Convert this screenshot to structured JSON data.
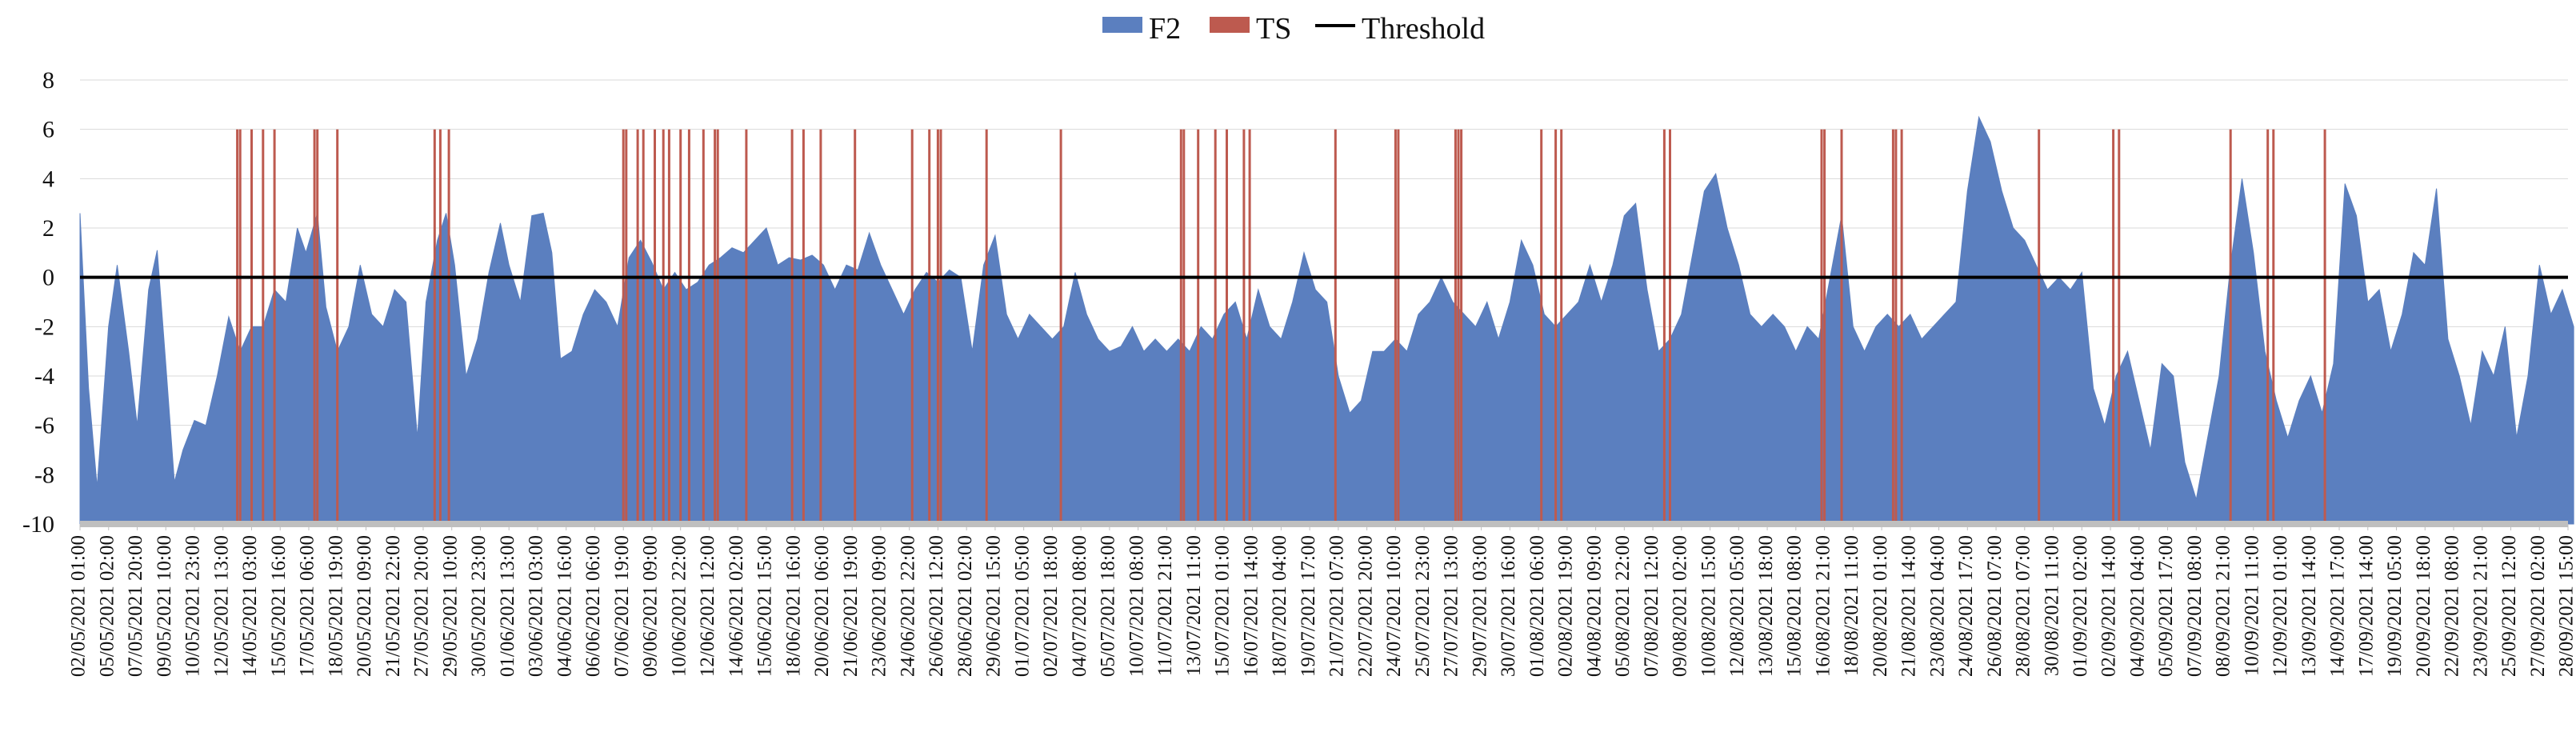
{
  "chart_data": {
    "type": "area",
    "title": "",
    "xlabel": "",
    "ylabel": "",
    "ylim": [
      -10,
      8
    ],
    "yticks": [
      -10,
      -8,
      -6,
      -4,
      -2,
      0,
      2,
      4,
      6,
      8
    ],
    "grid": "horizontal",
    "legend_position": "top-center",
    "legend": [
      {
        "name": "F2",
        "kind": "area",
        "color": "#5b7fbf"
      },
      {
        "name": "TS",
        "kind": "bar",
        "color": "#bd5a4f"
      },
      {
        "name": "Threshold",
        "kind": "line",
        "color": "#000000"
      }
    ],
    "x_tick_labels": [
      "02/05/2021 01:00",
      "05/05/2021 02:00",
      "07/05/2021 20:00",
      "09/05/2021 10:00",
      "10/05/2021 23:00",
      "12/05/2021 13:00",
      "14/05/2021 03:00",
      "15/05/2021 16:00",
      "17/05/2021 06:00",
      "18/05/2021 19:00",
      "20/05/2021 09:00",
      "21/05/2021 22:00",
      "27/05/2021 20:00",
      "29/05/2021 10:00",
      "30/05/2021 23:00",
      "01/06/2021 13:00",
      "03/06/2021 03:00",
      "04/06/2021 16:00",
      "06/06/2021 06:00",
      "07/06/2021 19:00",
      "09/06/2021 09:00",
      "10/06/2021 22:00",
      "12/06/2021 12:00",
      "14/06/2021 02:00",
      "15/06/2021 15:00",
      "18/06/2021 16:00",
      "20/06/2021 06:00",
      "21/06/2021 19:00",
      "23/06/2021 09:00",
      "24/06/2021 22:00",
      "26/06/2021 12:00",
      "28/06/2021 02:00",
      "29/06/2021 15:00",
      "01/07/2021 05:00",
      "02/07/2021 18:00",
      "04/07/2021 08:00",
      "05/07/2021 18:00",
      "10/07/2021 08:00",
      "11/07/2021 21:00",
      "13/07/2021 11:00",
      "15/07/2021 01:00",
      "16/07/2021 14:00",
      "18/07/2021 04:00",
      "19/07/2021 17:00",
      "21/07/2021 07:00",
      "22/07/2021 20:00",
      "24/07/2021 10:00",
      "25/07/2021 23:00",
      "27/07/2021 13:00",
      "29/07/2021 03:00",
      "30/07/2021 16:00",
      "01/08/2021 06:00",
      "02/08/2021 19:00",
      "04/08/2021 09:00",
      "05/08/2021 22:00",
      "07/08/2021 12:00",
      "09/08/2021 02:00",
      "10/08/2021 15:00",
      "12/08/2021 05:00",
      "13/08/2021 18:00",
      "15/08/2021 08:00",
      "16/08/2021 21:00",
      "18/08/2021 11:00",
      "20/08/2021 01:00",
      "21/08/2021 14:00",
      "23/08/2021 04:00",
      "24/08/2021 17:00",
      "26/08/2021 07:00",
      "28/08/2021 07:00",
      "30/08/2021 11:00",
      "01/09/2021 02:00",
      "02/09/2021 14:00",
      "04/09/2021 04:00",
      "05/09/2021 17:00",
      "07/09/2021 08:00",
      "08/09/2021 21:00",
      "10/09/2021 11:00",
      "12/09/2021 01:00",
      "13/09/2021 14:00",
      "14/09/2021 17:00",
      "17/09/2021 14:00",
      "19/09/2021 05:00",
      "20/09/2021 18:00",
      "22/09/2021 08:00",
      "23/09/2021 21:00",
      "25/09/2021 12:00",
      "27/09/2021 02:00",
      "28/09/2021 15:00"
    ],
    "threshold": 0,
    "series": [
      {
        "name": "F2",
        "kind": "area",
        "points": [
          [
            0,
            2.6
          ],
          [
            0.3,
            -4.5
          ],
          [
            0.6,
            -8.5
          ],
          [
            1.0,
            -2.0
          ],
          [
            1.3,
            0.5
          ],
          [
            1.7,
            -3.0
          ],
          [
            2.0,
            -6.0
          ],
          [
            2.4,
            -0.5
          ],
          [
            2.7,
            1.1
          ],
          [
            3.0,
            -3.5
          ],
          [
            3.3,
            -8.3
          ],
          [
            3.6,
            -7.0
          ],
          [
            4.0,
            -5.8
          ],
          [
            4.4,
            -6.0
          ],
          [
            4.8,
            -4.0
          ],
          [
            5.2,
            -1.6
          ],
          [
            5.6,
            -3.0
          ],
          [
            6.0,
            -2.0
          ],
          [
            6.4,
            -2.0
          ],
          [
            6.8,
            -0.5
          ],
          [
            7.2,
            -1.0
          ],
          [
            7.6,
            2.0
          ],
          [
            7.9,
            1.0
          ],
          [
            8.3,
            2.6
          ],
          [
            8.6,
            -1.2
          ],
          [
            9.0,
            -3.0
          ],
          [
            9.4,
            -2.0
          ],
          [
            9.8,
            0.5
          ],
          [
            10.2,
            -1.5
          ],
          [
            10.6,
            -2.0
          ],
          [
            11.0,
            -0.5
          ],
          [
            11.4,
            -1.0
          ],
          [
            11.8,
            -6.5
          ],
          [
            12.1,
            -1.0
          ],
          [
            12.5,
            1.5
          ],
          [
            12.8,
            2.6
          ],
          [
            13.1,
            0.5
          ],
          [
            13.5,
            -4.0
          ],
          [
            13.9,
            -2.5
          ],
          [
            14.3,
            0.2
          ],
          [
            14.7,
            2.2
          ],
          [
            15.0,
            0.5
          ],
          [
            15.4,
            -1.0
          ],
          [
            15.8,
            2.5
          ],
          [
            16.2,
            2.6
          ],
          [
            16.5,
            1.0
          ],
          [
            16.8,
            -3.3
          ],
          [
            17.2,
            -3.0
          ],
          [
            17.6,
            -1.5
          ],
          [
            18.0,
            -0.5
          ],
          [
            18.4,
            -1.0
          ],
          [
            18.8,
            -2.0
          ],
          [
            19.2,
            0.8
          ],
          [
            19.6,
            1.5
          ],
          [
            20.0,
            0.6
          ],
          [
            20.4,
            -0.5
          ],
          [
            20.8,
            0.2
          ],
          [
            21.2,
            -0.5
          ],
          [
            21.6,
            -0.2
          ],
          [
            22.0,
            0.5
          ],
          [
            22.4,
            0.8
          ],
          [
            22.8,
            1.2
          ],
          [
            23.2,
            1.0
          ],
          [
            23.6,
            1.5
          ],
          [
            24.0,
            2.0
          ],
          [
            24.4,
            0.5
          ],
          [
            24.8,
            0.8
          ],
          [
            25.2,
            0.7
          ],
          [
            25.6,
            0.9
          ],
          [
            26.0,
            0.5
          ],
          [
            26.4,
            -0.5
          ],
          [
            26.8,
            0.5
          ],
          [
            27.2,
            0.3
          ],
          [
            27.6,
            1.8
          ],
          [
            28.0,
            0.5
          ],
          [
            28.4,
            -0.5
          ],
          [
            28.8,
            -1.5
          ],
          [
            29.2,
            -0.5
          ],
          [
            29.6,
            0.2
          ],
          [
            30.0,
            -0.2
          ],
          [
            30.4,
            0.3
          ],
          [
            30.8,
            0.0
          ],
          [
            31.2,
            -3.0
          ],
          [
            31.6,
            0.5
          ],
          [
            32.0,
            1.7
          ],
          [
            32.4,
            -1.5
          ],
          [
            32.8,
            -2.5
          ],
          [
            33.2,
            -1.5
          ],
          [
            33.6,
            -2.0
          ],
          [
            34.0,
            -2.5
          ],
          [
            34.4,
            -2.0
          ],
          [
            34.8,
            0.2
          ],
          [
            35.2,
            -1.5
          ],
          [
            35.6,
            -2.5
          ],
          [
            36.0,
            -3.0
          ],
          [
            36.4,
            -2.8
          ],
          [
            36.8,
            -2.0
          ],
          [
            37.2,
            -3.0
          ],
          [
            37.6,
            -2.5
          ],
          [
            38.0,
            -3.0
          ],
          [
            38.4,
            -2.5
          ],
          [
            38.8,
            -3.0
          ],
          [
            39.2,
            -2.0
          ],
          [
            39.6,
            -2.5
          ],
          [
            40.0,
            -1.5
          ],
          [
            40.4,
            -1.0
          ],
          [
            40.8,
            -2.5
          ],
          [
            41.2,
            -0.5
          ],
          [
            41.6,
            -2.0
          ],
          [
            42.0,
            -2.5
          ],
          [
            42.4,
            -1.0
          ],
          [
            42.8,
            1.0
          ],
          [
            43.2,
            -0.5
          ],
          [
            43.6,
            -1.0
          ],
          [
            44.0,
            -4.0
          ],
          [
            44.4,
            -5.5
          ],
          [
            44.8,
            -5.0
          ],
          [
            45.2,
            -3.0
          ],
          [
            45.6,
            -3.0
          ],
          [
            46.0,
            -2.5
          ],
          [
            46.4,
            -3.0
          ],
          [
            46.8,
            -1.5
          ],
          [
            47.2,
            -1.0
          ],
          [
            47.6,
            0.0
          ],
          [
            48.0,
            -1.0
          ],
          [
            48.4,
            -1.5
          ],
          [
            48.8,
            -2.0
          ],
          [
            49.2,
            -1.0
          ],
          [
            49.6,
            -2.5
          ],
          [
            50.0,
            -1.0
          ],
          [
            50.4,
            1.5
          ],
          [
            50.8,
            0.5
          ],
          [
            51.2,
            -1.5
          ],
          [
            51.6,
            -2.0
          ],
          [
            52.0,
            -1.5
          ],
          [
            52.4,
            -1.0
          ],
          [
            52.8,
            0.5
          ],
          [
            53.2,
            -1.0
          ],
          [
            53.6,
            0.5
          ],
          [
            54.0,
            2.5
          ],
          [
            54.4,
            3.0
          ],
          [
            54.8,
            -0.5
          ],
          [
            55.2,
            -3.0
          ],
          [
            55.6,
            -2.5
          ],
          [
            56.0,
            -1.5
          ],
          [
            56.4,
            1.0
          ],
          [
            56.8,
            3.5
          ],
          [
            57.2,
            4.2
          ],
          [
            57.6,
            2.0
          ],
          [
            58.0,
            0.5
          ],
          [
            58.4,
            -1.5
          ],
          [
            58.8,
            -2.0
          ],
          [
            59.2,
            -1.5
          ],
          [
            59.6,
            -2.0
          ],
          [
            60.0,
            -3.0
          ],
          [
            60.4,
            -2.0
          ],
          [
            60.8,
            -2.5
          ],
          [
            61.2,
            0.0
          ],
          [
            61.6,
            2.5
          ],
          [
            62.0,
            -2.0
          ],
          [
            62.4,
            -3.0
          ],
          [
            62.8,
            -2.0
          ],
          [
            63.2,
            -1.5
          ],
          [
            63.6,
            -2.0
          ],
          [
            64.0,
            -1.5
          ],
          [
            64.4,
            -2.5
          ],
          [
            64.8,
            -2.0
          ],
          [
            65.2,
            -1.5
          ],
          [
            65.6,
            -1.0
          ],
          [
            66.0,
            3.5
          ],
          [
            66.4,
            6.5
          ],
          [
            66.8,
            5.5
          ],
          [
            67.2,
            3.5
          ],
          [
            67.6,
            2.0
          ],
          [
            68.0,
            1.5
          ],
          [
            68.4,
            0.5
          ],
          [
            68.8,
            -0.5
          ],
          [
            69.2,
            0.0
          ],
          [
            69.6,
            -0.5
          ],
          [
            70.0,
            0.2
          ],
          [
            70.4,
            -4.5
          ],
          [
            70.8,
            -6.0
          ],
          [
            71.2,
            -4.0
          ],
          [
            71.6,
            -3.0
          ],
          [
            72.0,
            -5.0
          ],
          [
            72.4,
            -7.0
          ],
          [
            72.8,
            -3.5
          ],
          [
            73.2,
            -4.0
          ],
          [
            73.6,
            -7.5
          ],
          [
            74.0,
            -9.0
          ],
          [
            74.4,
            -6.5
          ],
          [
            74.8,
            -4.0
          ],
          [
            75.2,
            0.5
          ],
          [
            75.6,
            4.0
          ],
          [
            76.0,
            1.0
          ],
          [
            76.4,
            -3.0
          ],
          [
            76.8,
            -5.0
          ],
          [
            77.2,
            -6.5
          ],
          [
            77.6,
            -5.0
          ],
          [
            78.0,
            -4.0
          ],
          [
            78.4,
            -5.5
          ],
          [
            78.8,
            -3.5
          ],
          [
            79.2,
            3.8
          ],
          [
            79.6,
            2.5
          ],
          [
            80.0,
            -1.0
          ],
          [
            80.4,
            -0.5
          ],
          [
            80.8,
            -3.0
          ],
          [
            81.2,
            -1.5
          ],
          [
            81.6,
            1.0
          ],
          [
            82.0,
            0.5
          ],
          [
            82.4,
            3.6
          ],
          [
            82.8,
            -2.5
          ],
          [
            83.2,
            -4.0
          ],
          [
            83.6,
            -6.0
          ],
          [
            84.0,
            -3.0
          ],
          [
            84.4,
            -4.0
          ],
          [
            84.8,
            -2.0
          ],
          [
            85.2,
            -6.5
          ],
          [
            85.6,
            -4.0
          ],
          [
            86.0,
            0.5
          ],
          [
            86.4,
            -1.5
          ],
          [
            86.8,
            -0.5
          ],
          [
            87.2,
            -2.0
          ]
        ]
      },
      {
        "name": "TS",
        "kind": "bar",
        "value": 6,
        "positions": [
          5.5,
          5.6,
          6.0,
          6.4,
          6.8,
          8.2,
          8.3,
          9.0,
          12.4,
          12.6,
          12.9,
          19.0,
          19.1,
          19.5,
          19.7,
          20.1,
          20.4,
          20.6,
          21.0,
          21.3,
          21.8,
          22.2,
          22.3,
          23.3,
          24.9,
          25.3,
          25.9,
          27.1,
          29.1,
          29.7,
          30.0,
          30.1,
          31.7,
          34.3,
          38.5,
          38.6,
          39.1,
          39.7,
          40.1,
          40.7,
          40.9,
          43.9,
          46.0,
          46.1,
          48.1,
          48.2,
          48.3,
          51.1,
          51.6,
          51.8,
          55.4,
          55.6,
          60.9,
          61.0,
          61.6,
          63.4,
          63.5,
          63.7,
          68.5,
          71.1,
          71.3,
          75.2,
          76.5,
          76.7,
          78.5
        ]
      },
      {
        "name": "Threshold",
        "kind": "line",
        "value": 0
      }
    ]
  }
}
